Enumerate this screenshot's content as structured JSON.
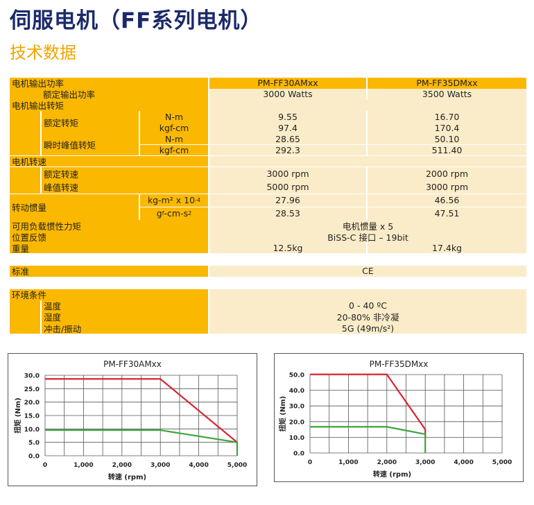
{
  "title": "伺服电机（FF系列电机）",
  "subtitle": "技术数据",
  "spec": {
    "model_header_label": "电机输出功率",
    "model_a": "PM-FF30AMxx",
    "model_b": "PM-FF35DMxx",
    "rated_power_label": "额定输出功率",
    "rated_power_a": "3000 Watts",
    "rated_power_b": "3500 Watts",
    "torque_label": "电机输出转矩",
    "rated_torque_label": "额定转矩",
    "rated_torque": [
      {
        "unit": "N-m",
        "a": "9.55",
        "b": "16.70"
      },
      {
        "unit": "kgf-cm",
        "a": "97.4",
        "b": "170.4"
      }
    ],
    "peak_torque_label": "瞬时峰值转矩",
    "peak_torque": [
      {
        "unit": "N-m",
        "a": "28.65",
        "b": "50.10"
      },
      {
        "unit": "kgf-cm",
        "a": "292.3",
        "b": "511.40"
      }
    ],
    "speed_label": "电机转速",
    "rated_speed_label": "额定转速",
    "rated_speed_a": "3000 rpm",
    "rated_speed_b": "2000 rpm",
    "peak_speed_label": "峰值转速",
    "peak_speed_a": "5000 rpm",
    "peak_speed_b": "3000 rpm",
    "inertia_label": "转动惯量",
    "inertia_unit_1": "kg-m² x 10",
    "inertia_unit_1_exp": "-4",
    "inertia_a_1": "27.96",
    "inertia_b_1": "46.56",
    "inertia_unit_2_pre": "g",
    "inertia_unit_2_sup": "f",
    "inertia_unit_2_mid": "-cm-s",
    "inertia_unit_2_exp": "2",
    "inertia_a_2": "28.53",
    "inertia_b_2": "47.51",
    "load_inertia_label": "可用负载惯性力矩",
    "load_inertia_value": "电机惯量 x 5",
    "feedback_label": "位置反馈",
    "feedback_value": "BiSS-C 接口 – 19bit",
    "weight_label": "重量",
    "weight_a": "12.5kg",
    "weight_b": "17.4kg",
    "standard_label": "标准",
    "standard_value": "CE",
    "env_label": "环境条件",
    "temp_label": "温度",
    "temp_value": "0 - 40 ºC",
    "humidity_label": "湿度",
    "humidity_value": "20-80% 非冷凝",
    "shock_label": "冲击/振动",
    "shock_value": "5G (49m/s²)"
  },
  "chart_data": [
    {
      "type": "line",
      "title": "PM-FF30AMxx",
      "xlabel": "转速 (rpm)",
      "ylabel": "扭矩 (Nm)",
      "xlim": [
        0,
        5000
      ],
      "ylim": [
        0,
        30
      ],
      "x_ticks": [
        "0",
        "1,000",
        "2,000",
        "3,000",
        "4,000",
        "5,000"
      ],
      "y_ticks": [
        "0.0",
        "5.0",
        "10.0",
        "15.0",
        "20.0",
        "25.0",
        "30.0"
      ],
      "grid": true,
      "series": [
        {
          "color": "#d7252f",
          "x": [
            0,
            3000,
            5000
          ],
          "y": [
            28.65,
            28.65,
            5.0
          ]
        },
        {
          "color": "#3aa63a",
          "x": [
            0,
            3000,
            5000,
            5000
          ],
          "y": [
            9.55,
            9.55,
            5.0,
            0
          ]
        }
      ]
    },
    {
      "type": "line",
      "title": "PM-FF35DMxx",
      "xlabel": "转速 (rpm)",
      "ylabel": "扭矩 (Nm)",
      "xlim": [
        0,
        5000
      ],
      "ylim": [
        0,
        50
      ],
      "x_ticks": [
        "0",
        "1,000",
        "2,000",
        "3,000",
        "4,000",
        "5,000"
      ],
      "y_ticks": [
        "0.0",
        "10.0",
        "20.0",
        "30.0",
        "40.0",
        "50.0"
      ],
      "grid": true,
      "series": [
        {
          "color": "#d7252f",
          "x": [
            0,
            2000,
            3000,
            3000
          ],
          "y": [
            50.1,
            50.1,
            15.0,
            10.0
          ]
        },
        {
          "color": "#3aa63a",
          "x": [
            0,
            2000,
            3000,
            3000
          ],
          "y": [
            16.7,
            16.7,
            12.0,
            0
          ]
        }
      ]
    }
  ]
}
